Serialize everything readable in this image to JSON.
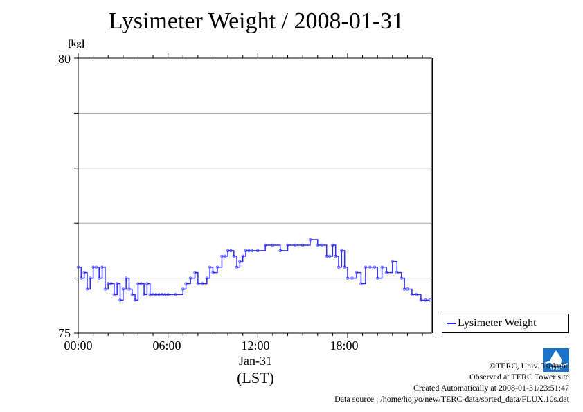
{
  "chart_data": {
    "type": "line",
    "title": "Lysimeter Weight / 2008-01-31",
    "ylabel": "[kg]",
    "xlabel": "(LST)",
    "date_label": "Jan-31",
    "ylim": [
      75,
      80
    ],
    "xlim": [
      0,
      23.6
    ],
    "yticks": [
      "75",
      "80"
    ],
    "ygrid": [
      76,
      77,
      78,
      79
    ],
    "xticks": [
      {
        "value": 0,
        "label": "00:00"
      },
      {
        "value": 6,
        "label": "06:00"
      },
      {
        "value": 12,
        "label": "12:00"
      },
      {
        "value": 18,
        "label": "18:00"
      }
    ],
    "grid": true,
    "legend_position": "outside-bottom-right",
    "series": [
      {
        "name": "Lysimeter Weight",
        "color": "#2a2aff",
        "x": [
          0.0,
          0.2,
          0.4,
          0.6,
          0.8,
          1.0,
          1.2,
          1.4,
          1.6,
          1.8,
          2.0,
          2.2,
          2.4,
          2.6,
          2.8,
          3.0,
          3.2,
          3.4,
          3.6,
          3.8,
          4.0,
          4.2,
          4.4,
          4.6,
          4.8,
          5.0,
          5.2,
          5.4,
          5.6,
          5.8,
          6.0,
          6.5,
          7.0,
          7.2,
          7.5,
          7.8,
          8.0,
          8.3,
          8.6,
          8.8,
          9.0,
          9.3,
          9.6,
          9.8,
          10.0,
          10.2,
          10.4,
          10.6,
          10.8,
          11.0,
          11.2,
          11.4,
          11.6,
          12.0,
          12.5,
          13.0,
          13.5,
          14.0,
          14.5,
          15.0,
          15.5,
          16.0,
          16.3,
          16.6,
          16.8,
          17.0,
          17.2,
          17.4,
          17.6,
          17.8,
          18.0,
          18.3,
          18.6,
          18.9,
          19.2,
          19.5,
          19.8,
          20.0,
          20.3,
          20.6,
          21.0,
          21.3,
          21.6,
          21.8,
          22.0,
          22.3,
          22.6,
          22.9,
          23.2,
          23.5
        ],
        "values": [
          76.2,
          76.0,
          76.1,
          75.8,
          76.0,
          76.2,
          76.2,
          76.0,
          76.2,
          75.8,
          75.9,
          75.9,
          75.7,
          75.9,
          75.6,
          75.8,
          76.0,
          75.8,
          75.7,
          75.6,
          75.9,
          75.9,
          75.7,
          75.9,
          75.7,
          75.7,
          75.7,
          75.7,
          75.7,
          75.7,
          75.7,
          75.7,
          75.8,
          75.9,
          76.0,
          76.1,
          75.9,
          75.9,
          76.0,
          76.2,
          76.1,
          76.2,
          76.4,
          76.4,
          76.5,
          76.5,
          76.4,
          76.2,
          76.3,
          76.4,
          76.5,
          76.5,
          76.5,
          76.5,
          76.6,
          76.6,
          76.5,
          76.6,
          76.6,
          76.6,
          76.7,
          76.6,
          76.6,
          76.4,
          76.4,
          76.6,
          76.4,
          76.2,
          76.5,
          76.2,
          76.0,
          76.0,
          76.1,
          75.9,
          76.2,
          76.2,
          76.2,
          76.0,
          76.2,
          76.1,
          76.3,
          76.1,
          76.0,
          75.8,
          75.8,
          75.7,
          75.7,
          75.6,
          75.6,
          75.6
        ]
      }
    ]
  },
  "credits": {
    "copyright": "©TERC, Univ. Tsukuba",
    "observed": "Observed at TERC Tower site",
    "created": "Created Automatically at 2008-01-31/23:51:47",
    "source": "Data source : /home/hojyo/new/TERC-data/sorted_data/FLUX.10s.dat"
  },
  "logo": {
    "text": "TERC",
    "color": "#1a73c9"
  }
}
